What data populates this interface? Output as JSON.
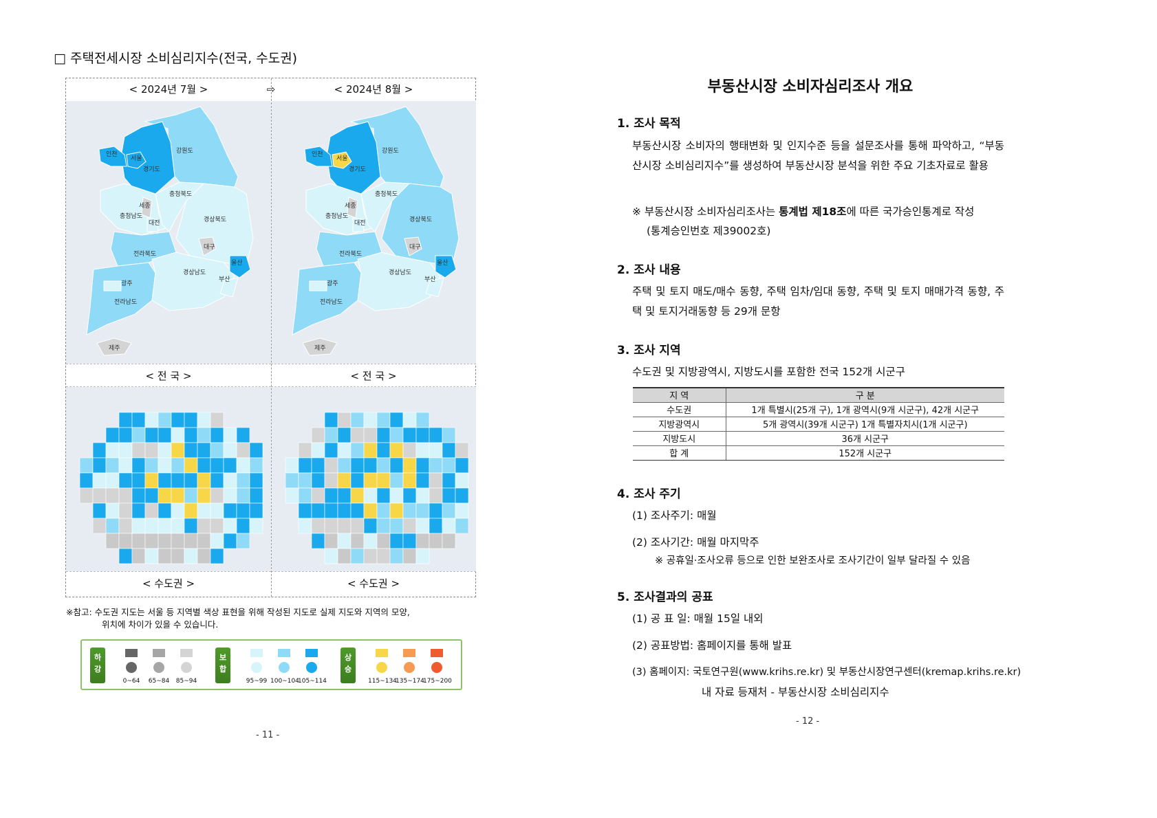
{
  "left_page": {
    "heading": "□ 주택전세시장 소비심리지수(전국, 수도권)",
    "month_prev": "< 2024년 7월 >",
    "arrow": "⇨",
    "month_next": "< 2024년 8월 >",
    "label_national": "< 전  국 >",
    "label_metro": "< 수도권 >",
    "note_line1": "※참고: 수도권 지도는 서울 등 지역별 색상 표현을 위해 작성된 지도로 실제 지도와 지역의 모양,",
    "note_line2": "위치에 차이가 있을 수 있습니다.",
    "page_number": "- 11 -",
    "legend": {
      "groups": [
        {
          "label": "하강",
          "items": [
            {
              "range": "0~64",
              "color": "#666666"
            },
            {
              "range": "65~84",
              "color": "#a6a6a6"
            },
            {
              "range": "85~94",
              "color": "#d4d4d4"
            }
          ]
        },
        {
          "label": "보합",
          "items": [
            {
              "range": "95~99",
              "color": "#d7f4fb"
            },
            {
              "range": "100~104",
              "color": "#8fdaf7"
            },
            {
              "range": "105~114",
              "color": "#1aa9ec"
            }
          ]
        },
        {
          "label": "상승",
          "items": [
            {
              "range": "115~134",
              "color": "#f7d648"
            },
            {
              "range": "135~174",
              "color": "#f59b52"
            },
            {
              "range": "175~200",
              "color": "#ee5b2f"
            }
          ]
        }
      ]
    },
    "maps": {
      "regions": [
        "강원도",
        "경기도",
        "인천",
        "서울",
        "충청남도",
        "충청북도",
        "세종",
        "대전",
        "경상북도",
        "대구",
        "전라북도",
        "전라남도",
        "광주",
        "경상남도",
        "울산",
        "부산",
        "제주"
      ],
      "jul": {
        "강원도": "100~104",
        "경기도": "105~114",
        "인천": "105~114",
        "서울": "105~114",
        "충청남도": "95~99",
        "충청북도": "95~99",
        "세종": "85~94",
        "대전": "95~99",
        "경상북도": "95~99",
        "대구": "85~94",
        "전라북도": "100~104",
        "전라남도": "100~104",
        "광주": "95~99",
        "경상남도": "95~99",
        "울산": "105~114",
        "부산": "95~99",
        "제주": "85~94"
      },
      "aug": {
        "강원도": "100~104",
        "경기도": "105~114",
        "인천": "105~114",
        "서울": "115~134",
        "충청남도": "95~99",
        "충청북도": "95~99",
        "세종": "85~94",
        "대전": "95~99",
        "경상북도": "100~104",
        "대구": "85~94",
        "전라북도": "100~104",
        "전라남도": "100~104",
        "광주": "95~99",
        "경상남도": "95~99",
        "울산": "105~114",
        "부산": "95~99",
        "제주": "85~94"
      }
    }
  },
  "right_page": {
    "title": "부동산시장 소비자심리조사 개요",
    "s1": {
      "heading": "1. 조사 목적",
      "body": "부동산시장 소비자의 행태변화 및 인지수준 등을 설문조사를 통해 파악하고, “부동산시장 소비심리지수”를 생성하여 부동산시장 분석을 위한 주요 기초자료로 활용",
      "note_pre": "※ 부동산시장 소비자심리조사는 ",
      "note_bold": "통계법 제18조",
      "note_post": "에 따른 국가승인통계로 작성",
      "note_line2": "(통계승인번호 제39002호)"
    },
    "s2": {
      "heading": "2. 조사 내용",
      "body": "주택 및 토지 매도/매수 동향, 주택 임차/임대 동향, 주택 및 토지 매매가격 동향, 주택 및 토지거래동향 등 29개 문항"
    },
    "s3": {
      "heading": "3. 조사 지역",
      "body": "수도권 및 지방광역시, 지방도시를 포함한 전국 152개 시군구",
      "table": {
        "headers": [
          "지   역",
          "구   분"
        ],
        "rows": [
          [
            "수도권",
            "1개 특별시(25개 구), 1개 광역시(9개 시군구), 42개 시군구"
          ],
          [
            "지방광역시",
            "5개 광역시(39개 시군구) 1개 특별자치시(1개 시군구)"
          ],
          [
            "지방도시",
            "36개 시군구"
          ],
          [
            "합    계",
            "152개 시군구"
          ]
        ]
      }
    },
    "s4": {
      "heading": "4. 조사 주기",
      "item1": "(1) 조사주기: 매월",
      "item2": "(2) 조사기간: 매월 마지막주",
      "note": "※ 공휴일·조사오류 등으로 인한 보완조사로 조사기간이 일부 달라질 수 있음"
    },
    "s5": {
      "heading": "5. 조사결과의 공표",
      "item1": "(1) 공 표 일: 매월 15일 내외",
      "item2": "(2) 공표방법: 홈페이지를 통해 발표",
      "item3": "(3) 홈페이지: 국토연구원(www.krihs.re.kr) 및 부동산시장연구센터(kremap.krihs.re.kr)",
      "item3_line2": "내 자료 등재처 - 부동산시장 소비심리지수"
    },
    "page_number": "- 12 -"
  }
}
